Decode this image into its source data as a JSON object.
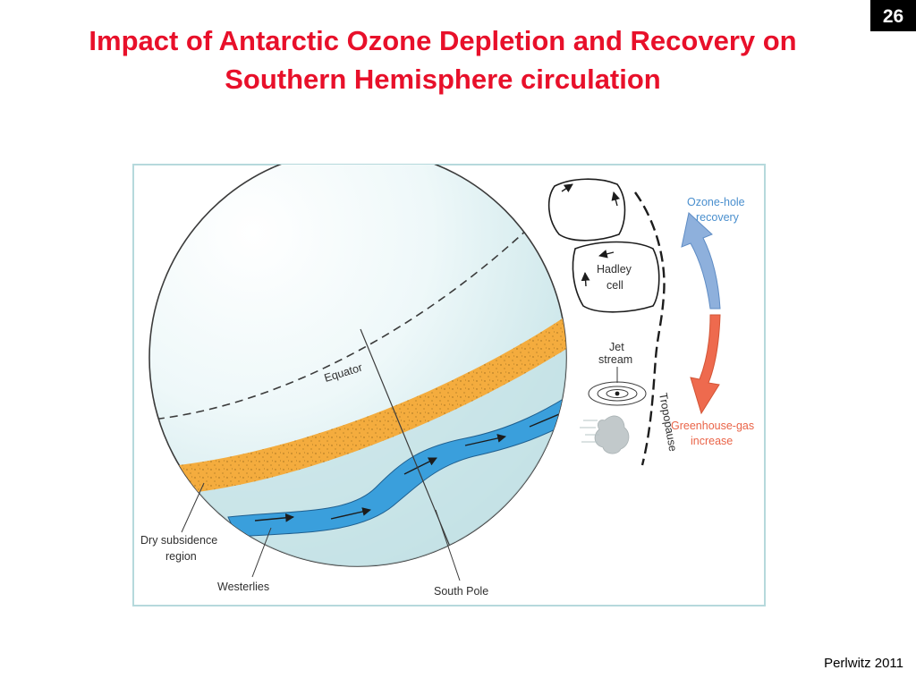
{
  "slide": {
    "title_line1": "Impact of Antarctic Ozone Depletion and Recovery on",
    "title_line2": "Southern Hemisphere circulation",
    "page_number": "26",
    "citation": "Perlwitz 2011"
  },
  "diagram": {
    "labels": {
      "equator": "Equator",
      "dry_subsidence_line1": "Dry subsidence",
      "dry_subsidence_line2": "region",
      "westerlies": "Westerlies",
      "south_pole": "South Pole",
      "hadley_line1": "Hadley",
      "hadley_line2": "cell",
      "jet_line1": "Jet",
      "jet_line2": "stream",
      "tropopause": "Tropopause",
      "ozone_line1": "Ozone-hole",
      "ozone_line2": "recovery",
      "ghg_line1": "Greenhouse-gas",
      "ghg_line2": "increase"
    },
    "colors": {
      "title": "#e8102a",
      "ozone_arrow": "#8eb0dc",
      "ghg_arrow": "#ee6a4e",
      "dry_band": "#f4ac3e",
      "westerlies_band": "#3a9fdc",
      "sphere_light": "#c9e6ea",
      "frame": "#b6d9dc"
    }
  }
}
